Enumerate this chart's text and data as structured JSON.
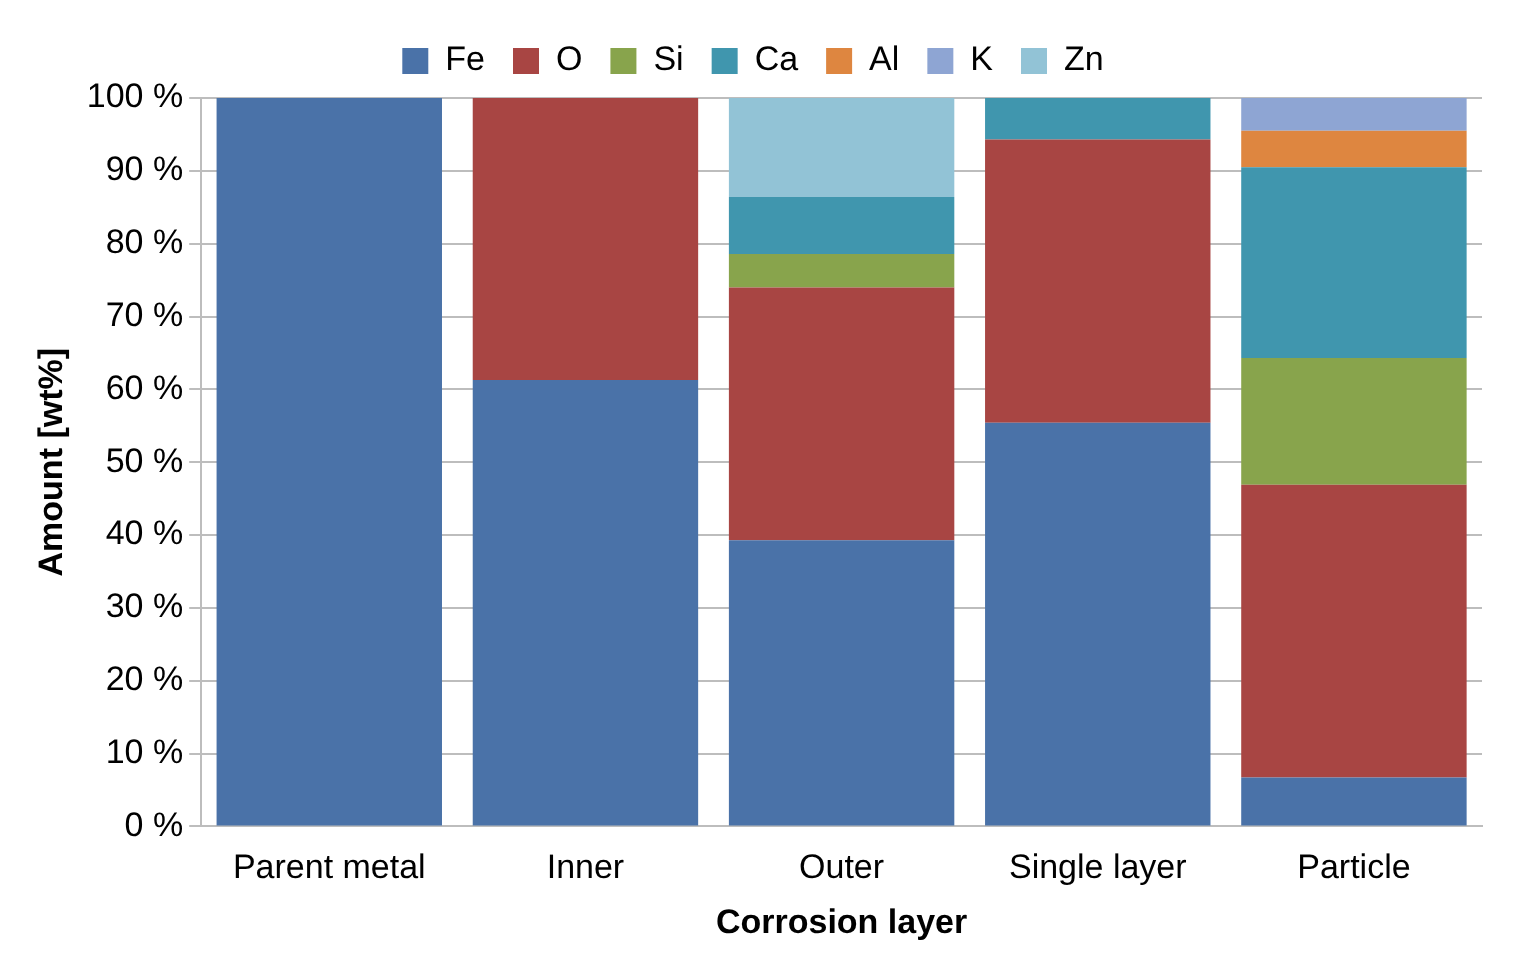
{
  "chart_data": {
    "type": "bar",
    "stacked": true,
    "xlabel": "Corrosion layer",
    "ylabel": "Amount [wt%]",
    "categories": [
      "Parent metal",
      "Inner",
      "Outer",
      "Single layer",
      "Particle"
    ],
    "series": [
      {
        "name": "Fe",
        "color": "#4a72a8",
        "values": [
          100,
          61.3,
          39.3,
          55.4,
          6.7
        ]
      },
      {
        "name": "O",
        "color": "#a84543",
        "values": [
          null,
          38.7,
          34.7,
          38.9,
          40.2
        ]
      },
      {
        "name": "Si",
        "color": "#88a44c",
        "values": [
          null,
          null,
          4.6,
          null,
          17.4
        ]
      },
      {
        "name": "Ca",
        "color": "#4096ae",
        "values": [
          null,
          null,
          7.8,
          5.7,
          26.2
        ]
      },
      {
        "name": "Al",
        "color": "#de8640",
        "values": [
          null,
          null,
          null,
          null,
          5.0
        ]
      },
      {
        "name": "K",
        "color": "#8ea5d3",
        "values": [
          null,
          null,
          null,
          null,
          4.5
        ]
      },
      {
        "name": "Zn",
        "color": "#92c3d6",
        "values": [
          null,
          null,
          13.6,
          null,
          null
        ]
      }
    ],
    "ylim": [
      0,
      100
    ],
    "yticks": [
      {
        "value": 0,
        "label": "0 %"
      },
      {
        "value": 10,
        "label": "10 %"
      },
      {
        "value": 20,
        "label": "20 %"
      },
      {
        "value": 30,
        "label": "30 %"
      },
      {
        "value": 40,
        "label": "40 %"
      },
      {
        "value": 50,
        "label": "50 %"
      },
      {
        "value": 60,
        "label": "60 %"
      },
      {
        "value": 70,
        "label": "70 %"
      },
      {
        "value": 80,
        "label": "80 %"
      },
      {
        "value": 90,
        "label": "90 %"
      },
      {
        "value": 100,
        "label": "100 %"
      }
    ],
    "grid": "y",
    "legend": "top"
  }
}
